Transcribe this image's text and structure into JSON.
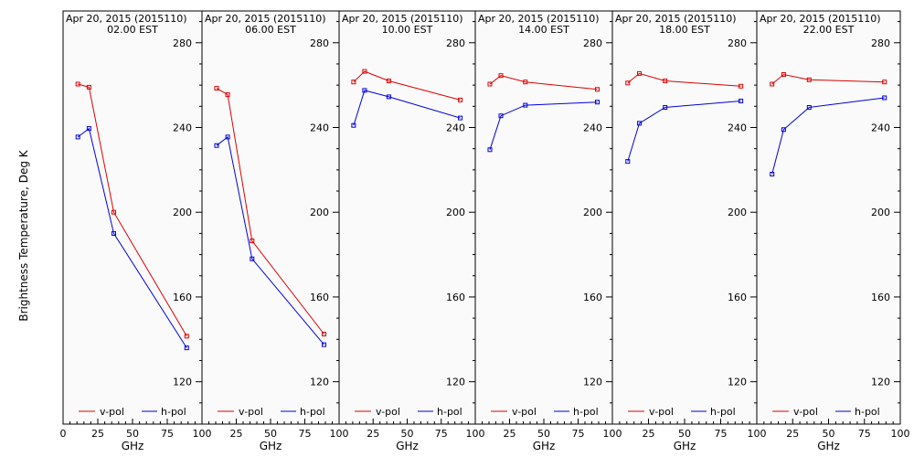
{
  "chart_data": {
    "type": "line",
    "ylabel": "Brightness Temperature, Deg K",
    "xlabel": "GHz",
    "ylim": [
      100,
      295
    ],
    "xlim": [
      0,
      100
    ],
    "y_ticks": [
      120,
      160,
      200,
      240,
      280
    ],
    "x_tick_labels_first_panel": [
      "0",
      "25",
      "50",
      "75"
    ],
    "x_tick_labels_other_panels": [
      "100",
      "25",
      "50",
      "75"
    ],
    "x_tick_labels_last_panel": [
      "100",
      "25",
      "50",
      "75",
      "100"
    ],
    "x": [
      10.65,
      18.7,
      36.5,
      89.0
    ],
    "series_colors": {
      "v-pol": "#dd0000",
      "h-pol": "#0000dd"
    },
    "legend": [
      "v-pol",
      "h-pol"
    ],
    "panels": [
      {
        "title": "Apr 20, 2015 (2015110)",
        "time": "02.00 EST",
        "series": [
          {
            "name": "v-pol",
            "values": [
              260.5,
              259,
              200,
              141.5
            ]
          },
          {
            "name": "h-pol",
            "values": [
              235.5,
              239.5,
              190,
              136
            ]
          }
        ]
      },
      {
        "title": "Apr 20, 2015 (2015110)",
        "time": "06.00 EST",
        "series": [
          {
            "name": "v-pol",
            "values": [
              258.5,
              255.5,
              186.5,
              142.5
            ]
          },
          {
            "name": "h-pol",
            "values": [
              231.5,
              235.5,
              178,
              137.5
            ]
          }
        ]
      },
      {
        "title": "Apr 20, 2015 (2015110)",
        "time": "10.00 EST",
        "series": [
          {
            "name": "v-pol",
            "values": [
              261.5,
              266.5,
              262,
              253
            ]
          },
          {
            "name": "h-pol",
            "values": [
              241,
              257.5,
              254.5,
              244.5
            ]
          }
        ]
      },
      {
        "title": "Apr 20, 2015 (2015110)",
        "time": "14.00 EST",
        "series": [
          {
            "name": "v-pol",
            "values": [
              260.5,
              264.5,
              261.5,
              258
            ]
          },
          {
            "name": "h-pol",
            "values": [
              229.5,
              245.5,
              250.5,
              252
            ]
          }
        ]
      },
      {
        "title": "Apr 20, 2015 (2015110)",
        "time": "18.00 EST",
        "series": [
          {
            "name": "v-pol",
            "values": [
              261,
              265.5,
              262,
              259.5
            ]
          },
          {
            "name": "h-pol",
            "values": [
              224,
              242,
              249.5,
              252.5
            ]
          }
        ]
      },
      {
        "title": "Apr 20, 2015 (2015110)",
        "time": "22.00 EST",
        "series": [
          {
            "name": "v-pol",
            "values": [
              260.5,
              265,
              262.5,
              261.5
            ]
          },
          {
            "name": "h-pol",
            "values": [
              218,
              239,
              249.5,
              254
            ]
          }
        ]
      }
    ]
  }
}
